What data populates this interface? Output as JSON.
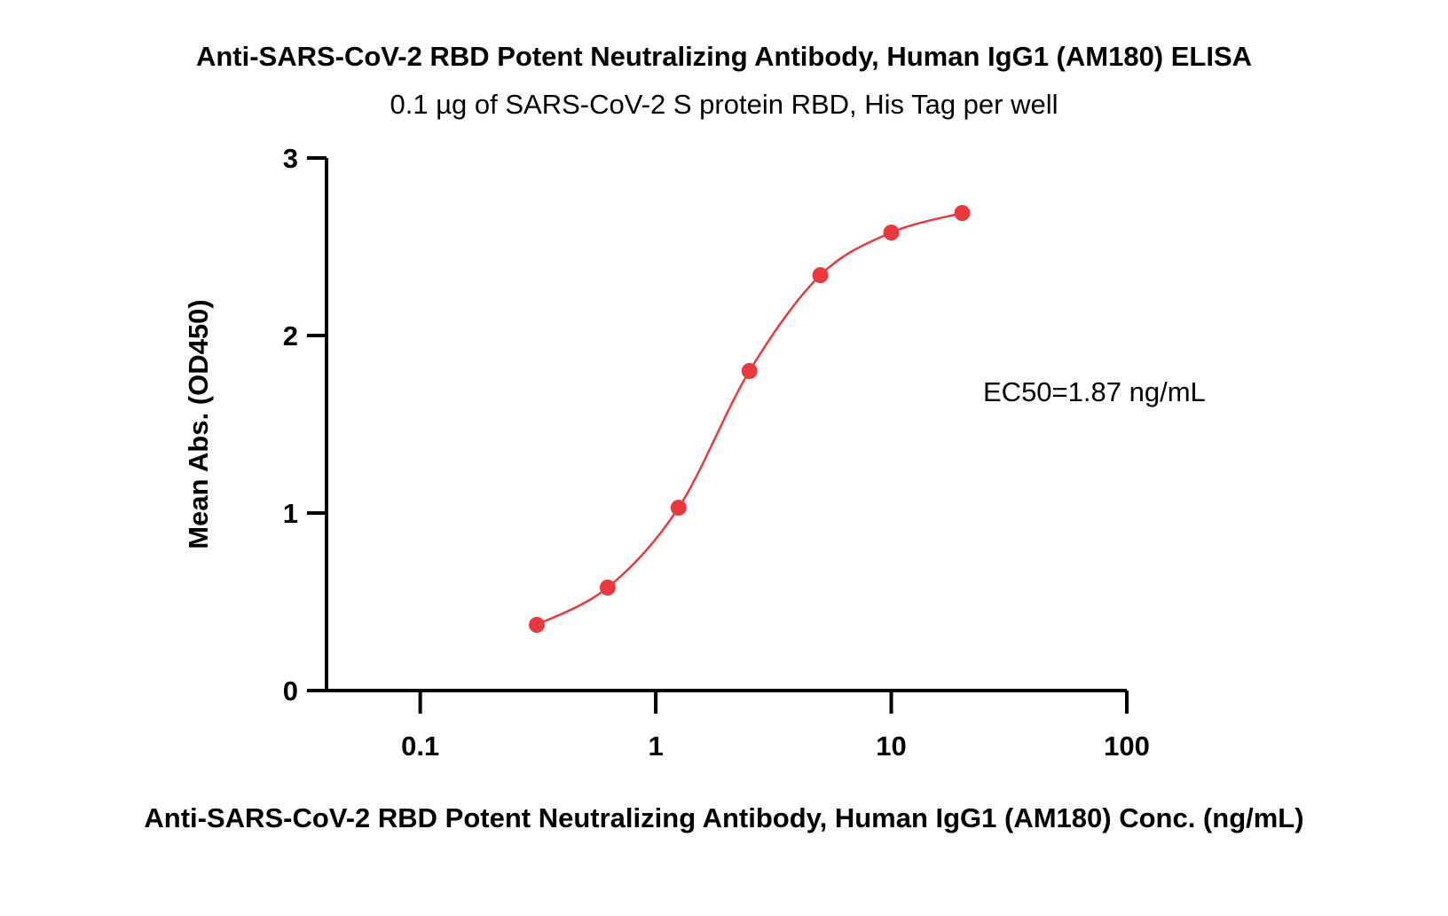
{
  "chart_data": {
    "type": "scatter",
    "title": "Anti-SARS-CoV-2 RBD Potent Neutralizing Antibody, Human IgG1 (AM180) ELISA",
    "subtitle": "0.1 µg of SARS-CoV-2 S protein RBD, His Tag per well",
    "xlabel": "Anti-SARS-CoV-2 RBD Potent Neutralizing Antibody, Human IgG1 (AM180) Conc. (ng/mL)",
    "ylabel": "Mean Abs. (OD450)",
    "x_scale": "log",
    "xlim": [
      0.04,
      100
    ],
    "ylim": [
      0,
      3
    ],
    "x_ticks": [
      0.1,
      1,
      10,
      100
    ],
    "x_tick_labels": [
      "0.1",
      "1",
      "10",
      "100"
    ],
    "y_ticks": [
      0,
      1,
      2,
      3
    ],
    "y_tick_labels": [
      "0",
      "1",
      "2",
      "3"
    ],
    "series": [
      {
        "color": "#e8393f",
        "points": [
          {
            "x": 0.3125,
            "y": 0.37
          },
          {
            "x": 0.625,
            "y": 0.58
          },
          {
            "x": 1.25,
            "y": 1.03
          },
          {
            "x": 2.5,
            "y": 1.8
          },
          {
            "x": 5,
            "y": 2.34
          },
          {
            "x": 10,
            "y": 2.58
          },
          {
            "x": 20,
            "y": 2.69
          }
        ],
        "fit_curve": "four-parameter logistic"
      }
    ],
    "annotation": "EC50=1.87 ng/mL"
  }
}
